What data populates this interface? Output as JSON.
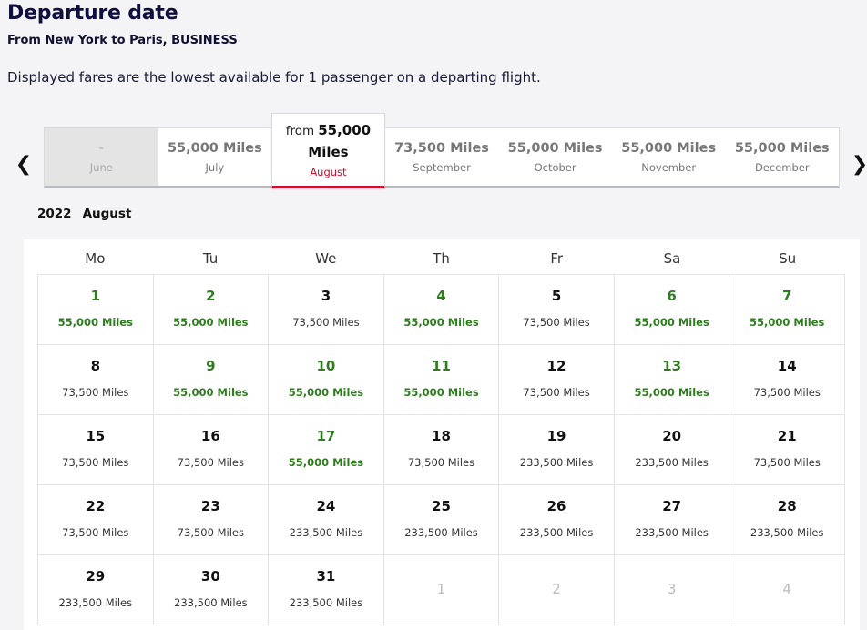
{
  "header": {
    "title": "Departure date",
    "route": "From New York to Paris, BUSINESS",
    "note": "Displayed fares are the lowest available for 1 passenger on a departing flight."
  },
  "month_bar": {
    "prev_icon": "chevron-left-icon",
    "next_icon": "chevron-right-icon",
    "months": [
      {
        "price": "-",
        "name": "June"
      },
      {
        "price": "55,000 Miles",
        "name": "July"
      },
      {
        "from_label": "from",
        "price_value": "55,000",
        "price_unit": "Miles",
        "name": "August"
      },
      {
        "price": "73,500 Miles",
        "name": "September"
      },
      {
        "price": "55,000 Miles",
        "name": "October"
      },
      {
        "price": "55,000 Miles",
        "name": "November"
      },
      {
        "price": "55,000 Miles",
        "name": "December"
      }
    ]
  },
  "calendar": {
    "year": "2022",
    "month": "August",
    "weekdays": [
      "Mo",
      "Tu",
      "We",
      "Th",
      "Fr",
      "Sa",
      "Su"
    ],
    "days": [
      {
        "day": "1",
        "fare": "55,000 Miles",
        "cheap": true
      },
      {
        "day": "2",
        "fare": "55,000 Miles",
        "cheap": true
      },
      {
        "day": "3",
        "fare": "73,500 Miles",
        "cheap": false
      },
      {
        "day": "4",
        "fare": "55,000 Miles",
        "cheap": true
      },
      {
        "day": "5",
        "fare": "73,500 Miles",
        "cheap": false
      },
      {
        "day": "6",
        "fare": "55,000 Miles",
        "cheap": true
      },
      {
        "day": "7",
        "fare": "55,000 Miles",
        "cheap": true
      },
      {
        "day": "8",
        "fare": "73,500 Miles",
        "cheap": false
      },
      {
        "day": "9",
        "fare": "55,000 Miles",
        "cheap": true
      },
      {
        "day": "10",
        "fare": "55,000 Miles",
        "cheap": true
      },
      {
        "day": "11",
        "fare": "55,000 Miles",
        "cheap": true
      },
      {
        "day": "12",
        "fare": "73,500 Miles",
        "cheap": false
      },
      {
        "day": "13",
        "fare": "55,000 Miles",
        "cheap": true
      },
      {
        "day": "14",
        "fare": "73,500 Miles",
        "cheap": false
      },
      {
        "day": "15",
        "fare": "73,500 Miles",
        "cheap": false
      },
      {
        "day": "16",
        "fare": "73,500 Miles",
        "cheap": false
      },
      {
        "day": "17",
        "fare": "55,000 Miles",
        "cheap": true
      },
      {
        "day": "18",
        "fare": "73,500 Miles",
        "cheap": false
      },
      {
        "day": "19",
        "fare": "233,500 Miles",
        "cheap": false
      },
      {
        "day": "20",
        "fare": "233,500 Miles",
        "cheap": false
      },
      {
        "day": "21",
        "fare": "73,500 Miles",
        "cheap": false
      },
      {
        "day": "22",
        "fare": "73,500 Miles",
        "cheap": false
      },
      {
        "day": "23",
        "fare": "73,500 Miles",
        "cheap": false
      },
      {
        "day": "24",
        "fare": "233,500 Miles",
        "cheap": false
      },
      {
        "day": "25",
        "fare": "233,500 Miles",
        "cheap": false
      },
      {
        "day": "26",
        "fare": "233,500 Miles",
        "cheap": false
      },
      {
        "day": "27",
        "fare": "233,500 Miles",
        "cheap": false
      },
      {
        "day": "28",
        "fare": "233,500 Miles",
        "cheap": false
      },
      {
        "day": "29",
        "fare": "233,500 Miles",
        "cheap": false
      },
      {
        "day": "30",
        "fare": "233,500 Miles",
        "cheap": false
      },
      {
        "day": "31",
        "fare": "233,500 Miles",
        "cheap": false
      },
      {
        "day": "1",
        "fare": "",
        "out": true
      },
      {
        "day": "2",
        "fare": "",
        "out": true
      },
      {
        "day": "3",
        "fare": "",
        "out": true
      },
      {
        "day": "4",
        "fare": "",
        "out": true
      }
    ]
  },
  "colors": {
    "cheap_fare": "#2e7d1e",
    "selected_accent": "#c8102e",
    "title": "#101040"
  }
}
